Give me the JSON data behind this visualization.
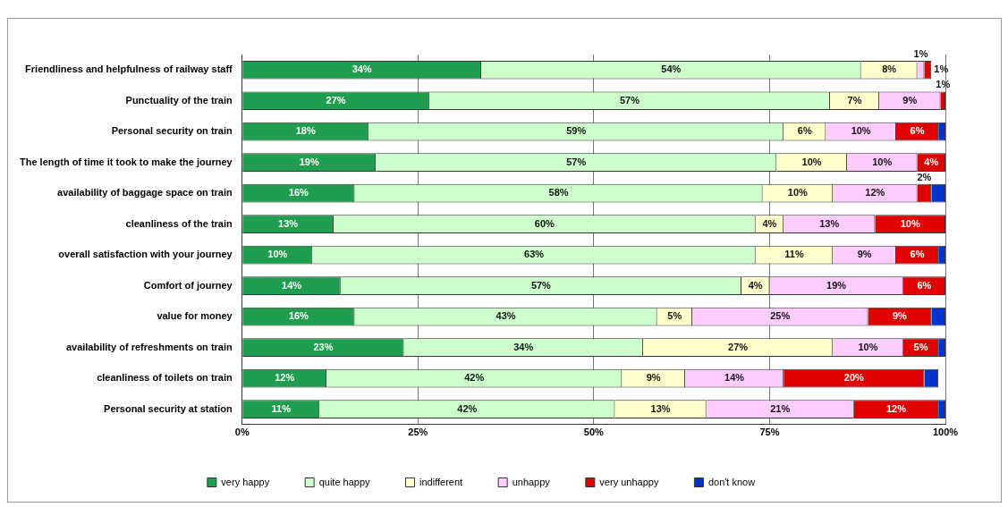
{
  "chart_data": {
    "type": "bar",
    "orientation": "horizontal",
    "stacked": true,
    "categories": [
      "Friendliness and helpfulness of railway staff",
      "Punctuality of the train",
      "Personal security on train",
      "The length of time it took to make the journey",
      "availability of baggage space on train",
      "cleanliness of the train",
      "overall satisfaction with your journey",
      "Comfort of journey",
      "value for money",
      "availability of refreshments on train",
      "cleanliness of toilets on train",
      "Personal security at station"
    ],
    "series": [
      {
        "name": "very happy",
        "color": "#1e9e4e",
        "values": [
          34,
          26.6,
          18,
          19,
          16,
          13,
          10,
          14,
          16,
          23,
          12,
          11
        ],
        "value_labels": [
          "34%",
          "27%",
          "18%",
          "19%",
          "16%",
          "13%",
          "10%",
          "14%",
          "16%",
          "23%",
          "12%",
          "11%"
        ]
      },
      {
        "name": "quite happy",
        "color": "#ccffcc",
        "values": [
          54,
          57,
          59,
          57,
          58,
          60,
          63,
          57,
          43,
          34,
          42,
          42
        ],
        "value_labels": [
          "54%",
          "57%",
          "59%",
          "57%",
          "58%",
          "60%",
          "63%",
          "57%",
          "43%",
          "34%",
          "42%",
          "42%"
        ]
      },
      {
        "name": "indifferent",
        "color": "#ffffcc",
        "values": [
          8,
          7,
          6,
          10,
          10,
          4,
          11,
          4,
          5,
          27,
          9,
          13
        ],
        "value_labels": [
          "8%",
          "7%",
          "6%",
          "10%",
          "10%",
          "4%",
          "11%",
          "4%",
          "5%",
          "27%",
          "9%",
          "13%"
        ]
      },
      {
        "name": "unhappy",
        "color": "#ffccff",
        "values": [
          1,
          8.7,
          10,
          10,
          12,
          13,
          9,
          19,
          25,
          10,
          14,
          21
        ],
        "value_labels": [
          "1%",
          "9%",
          "10%",
          "10%",
          "12%",
          "13%",
          "9%",
          "19%",
          "25%",
          "10%",
          "14%",
          "21%"
        ]
      },
      {
        "name": "very unhappy",
        "color": "#e00000",
        "values": [
          1,
          0.7,
          6,
          4,
          2,
          10,
          6,
          6,
          9,
          5,
          20,
          12
        ],
        "value_labels": [
          "1%",
          "1%",
          "6%",
          "4%",
          "2%",
          "10%",
          "6%",
          "6%",
          "9%",
          "5%",
          "20%",
          "12%"
        ]
      },
      {
        "name": "don't know",
        "color": "#0033cc",
        "values": [
          null,
          null,
          1,
          null,
          2,
          null,
          1,
          null,
          2,
          1,
          2,
          1
        ],
        "value_labels": [
          null,
          null,
          null,
          null,
          null,
          null,
          null,
          null,
          null,
          null,
          null,
          null
        ]
      }
    ],
    "xlim": [
      0,
      100
    ],
    "xticks": [
      {
        "value": 0,
        "label": "0%"
      },
      {
        "value": 25,
        "label": "25%"
      },
      {
        "value": 50,
        "label": "50%"
      },
      {
        "value": 75,
        "label": "75%"
      },
      {
        "value": 100,
        "label": "100%"
      }
    ],
    "grid": "x",
    "legend": "bottom"
  }
}
